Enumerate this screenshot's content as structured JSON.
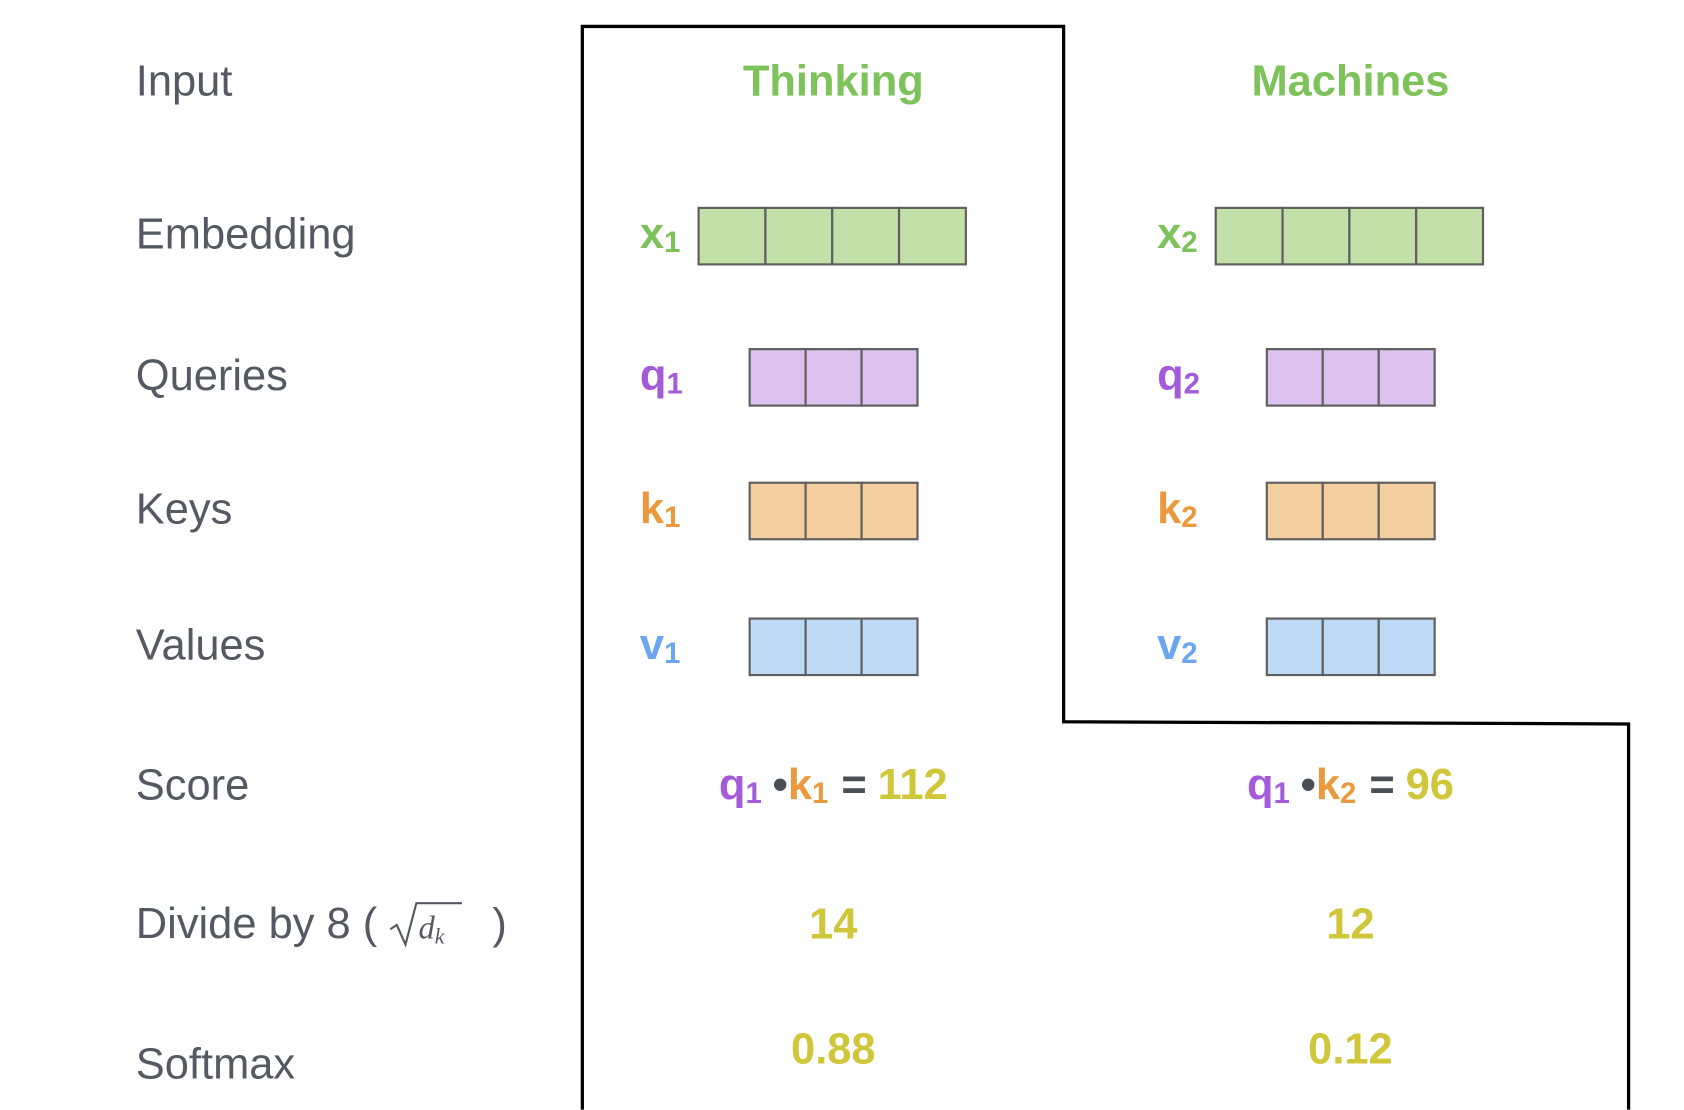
{
  "rows": [
    "Input",
    "Embedding",
    "Queries",
    "Keys",
    "Values",
    "Score",
    {
      "prefix": "Divide by 8 (",
      "radicand": "d",
      "radicand_sub": "k",
      "suffix": ")"
    },
    "Softmax"
  ],
  "columns": [
    {
      "word": "Thinking",
      "embedding": {
        "symbol": "x",
        "index": "1"
      },
      "queries": {
        "symbol": "q",
        "index": "1"
      },
      "keys": {
        "symbol": "k",
        "index": "1"
      },
      "values": {
        "symbol": "v",
        "index": "1"
      },
      "score": {
        "q": "q",
        "q_index": "1",
        "dot": "•",
        "k": "k",
        "k_index": "1",
        "equals": "=",
        "result": "112"
      },
      "divided": "14",
      "softmax": "0.88"
    },
    {
      "word": "Machines",
      "embedding": {
        "symbol": "x",
        "index": "2"
      },
      "queries": {
        "symbol": "q",
        "index": "2"
      },
      "keys": {
        "symbol": "k",
        "index": "2"
      },
      "values": {
        "symbol": "v",
        "index": "2"
      },
      "score": {
        "q": "q",
        "q_index": "1",
        "dot": "•",
        "k": "k",
        "k_index": "2",
        "equals": "=",
        "result": "96"
      },
      "divided": "12",
      "softmax": "0.12"
    }
  ]
}
